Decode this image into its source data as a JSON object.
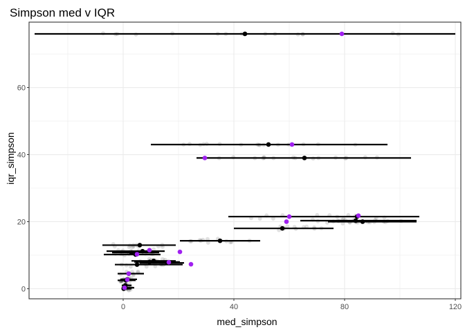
{
  "chart_data": {
    "type": "scatter",
    "title": "Simpson med v IQR",
    "xlabel": "med_simpson",
    "ylabel": "iqr_simpson",
    "xlim": [
      -34,
      122
    ],
    "ylim": [
      -3,
      79.5
    ],
    "x_ticks": [
      0,
      40,
      80,
      120
    ],
    "x_tick_labels": [
      "0",
      "40",
      "80",
      "120"
    ],
    "y_ticks": [
      0,
      20,
      40,
      60
    ],
    "y_tick_labels": [
      "0",
      "20",
      "40",
      "60"
    ],
    "grid": true,
    "theme": "bw",
    "colors": {
      "interval": "#000000",
      "median_point": "#000000",
      "highlight_point": "#a020f0",
      "raw_points": "#bdbdbd",
      "grid": "#ebebeb",
      "panel_border": "#333333"
    },
    "series": [
      {
        "name": "interval",
        "points": [
          {
            "y": 76.0,
            "x_low": -32,
            "x_high": 120,
            "x_mid": 44
          },
          {
            "y": 43.0,
            "x_low": 10,
            "x_high": 95.5,
            "x_mid": 52.5
          },
          {
            "y": 39.0,
            "x_low": 26.5,
            "x_high": 104,
            "x_mid": 65.5
          },
          {
            "y": 21.5,
            "x_low": 38,
            "x_high": 107,
            "x_mid": 84.5
          },
          {
            "y": 20.3,
            "x_low": 64,
            "x_high": 106,
            "x_mid": 84
          },
          {
            "y": 20.0,
            "x_low": 74,
            "x_high": 106,
            "x_mid": 86.5
          },
          {
            "y": 18.0,
            "x_low": 40,
            "x_high": 76,
            "x_mid": 57.5
          },
          {
            "y": 14.3,
            "x_low": 20.5,
            "x_high": 49.5,
            "x_mid": 35
          },
          {
            "y": 13.0,
            "x_low": -7.5,
            "x_high": 19,
            "x_mid": 6
          },
          {
            "y": 11.2,
            "x_low": -6,
            "x_high": 15,
            "x_mid": 7
          },
          {
            "y": 10.8,
            "x_low": -4,
            "x_high": 13,
            "x_mid": 3
          },
          {
            "y": 10.2,
            "x_low": -7,
            "x_high": 13.5,
            "x_mid": 4.5
          },
          {
            "y": 8.3,
            "x_low": 3,
            "x_high": 19,
            "x_mid": 11
          },
          {
            "y": 8.0,
            "x_low": 4,
            "x_high": 20.5,
            "x_mid": 9.5
          },
          {
            "y": 7.7,
            "x_low": 6,
            "x_high": 22,
            "x_mid": 16
          },
          {
            "y": 7.2,
            "x_low": -3,
            "x_high": 21.5,
            "x_mid": 5
          },
          {
            "y": 4.5,
            "x_low": -2,
            "x_high": 7.5,
            "x_mid": 2
          },
          {
            "y": 2.8,
            "x_low": -1,
            "x_high": 5,
            "x_mid": 1.5
          },
          {
            "y": 2.5,
            "x_low": -2,
            "x_high": 4.5,
            "x_mid": 1
          },
          {
            "y": 1.0,
            "x_low": -0.5,
            "x_high": 3,
            "x_mid": 0.8
          },
          {
            "y": 0.3,
            "x_low": -0.5,
            "x_high": 4,
            "x_mid": 0.4
          },
          {
            "y": 0.0,
            "x_low": -0.3,
            "x_high": 3,
            "x_mid": 0.2
          }
        ]
      },
      {
        "name": "highlight",
        "points": [
          {
            "x": 79,
            "y": 76.0
          },
          {
            "x": 61,
            "y": 43.0
          },
          {
            "x": 29.5,
            "y": 39.0
          },
          {
            "x": 60,
            "y": 21.5
          },
          {
            "x": 85,
            "y": 21.8
          },
          {
            "x": 59,
            "y": 20.0
          },
          {
            "x": 9.5,
            "y": 11.5
          },
          {
            "x": 20.5,
            "y": 11.0
          },
          {
            "x": 5,
            "y": 10.3
          },
          {
            "x": 16.5,
            "y": 7.9
          },
          {
            "x": 24.5,
            "y": 7.3
          },
          {
            "x": 2,
            "y": 4.5
          },
          {
            "x": 1.5,
            "y": 2.7
          },
          {
            "x": 0.5,
            "y": 0.3
          }
        ]
      }
    ]
  }
}
